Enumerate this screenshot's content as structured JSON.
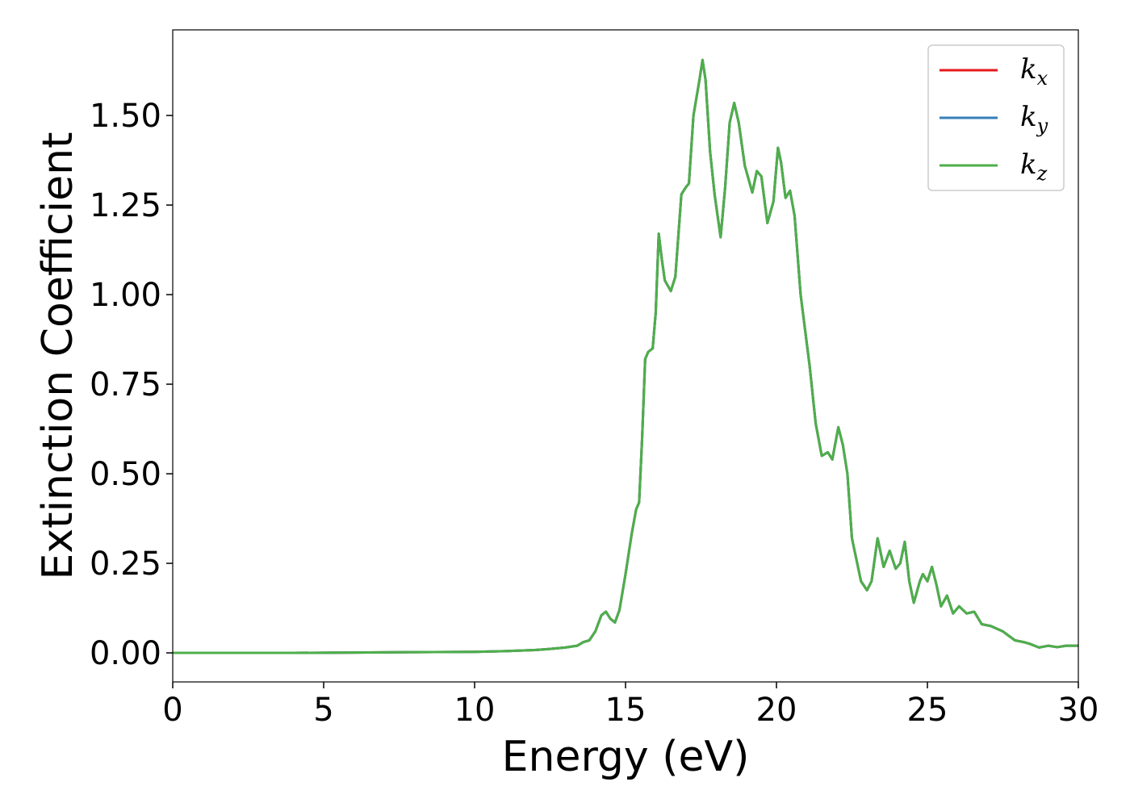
{
  "chart_data": {
    "type": "line",
    "xlabel": "Energy (eV)",
    "ylabel": "Extinction Coefficient",
    "xlim": [
      0,
      30
    ],
    "ylim": [
      -0.081,
      1.739
    ],
    "xticks": [
      0,
      5,
      10,
      15,
      20,
      25,
      30
    ],
    "yticks": [
      {
        "value": 0,
        "label": "0.00"
      },
      {
        "value": 0.25,
        "label": "0.25"
      },
      {
        "value": 0.5,
        "label": "0.50"
      },
      {
        "value": 0.75,
        "label": "0.75"
      },
      {
        "value": 1.0,
        "label": "1.00"
      },
      {
        "value": 1.25,
        "label": "1.25"
      },
      {
        "value": 1.5,
        "label": "1.50"
      }
    ],
    "legend": "upper right",
    "grid": false,
    "x": [
      0,
      2,
      4,
      6,
      8,
      10,
      11,
      12,
      12.5,
      13,
      13.4,
      13.6,
      13.8,
      14,
      14.2,
      14.35,
      14.5,
      14.65,
      14.8,
      15,
      15.2,
      15.35,
      15.45,
      15.55,
      15.65,
      15.75,
      15.9,
      16.0,
      16.1,
      16.2,
      16.3,
      16.5,
      16.65,
      16.85,
      17.0,
      17.1,
      17.25,
      17.45,
      17.55,
      17.65,
      17.8,
      17.95,
      18.15,
      18.3,
      18.45,
      18.6,
      18.75,
      18.95,
      19.2,
      19.35,
      19.5,
      19.7,
      19.9,
      20.05,
      20.15,
      20.3,
      20.45,
      20.6,
      20.8,
      21.1,
      21.3,
      21.5,
      21.7,
      21.85,
      22.05,
      22.2,
      22.35,
      22.5,
      22.8,
      23.0,
      23.15,
      23.35,
      23.55,
      23.75,
      23.95,
      24.1,
      24.25,
      24.4,
      24.55,
      24.75,
      24.85,
      25.0,
      25.15,
      25.3,
      25.45,
      25.65,
      25.85,
      26.05,
      26.3,
      26.55,
      26.8,
      27.1,
      27.5,
      27.9,
      28.2,
      28.4,
      28.7,
      29.0,
      29.3,
      29.6,
      30
    ],
    "series": [
      {
        "name": "kx",
        "color": "#e41a1c",
        "values": [
          0,
          0,
          0,
          0.001,
          0.002,
          0.003,
          0.005,
          0.008,
          0.011,
          0.015,
          0.02,
          0.03,
          0.035,
          0.06,
          0.105,
          0.115,
          0.095,
          0.085,
          0.12,
          0.22,
          0.33,
          0.4,
          0.42,
          0.6,
          0.82,
          0.84,
          0.85,
          0.95,
          1.17,
          1.1,
          1.04,
          1.01,
          1.05,
          1.28,
          1.3,
          1.31,
          1.5,
          1.6,
          1.655,
          1.6,
          1.4,
          1.28,
          1.16,
          1.3,
          1.48,
          1.535,
          1.48,
          1.36,
          1.285,
          1.345,
          1.33,
          1.2,
          1.26,
          1.41,
          1.37,
          1.27,
          1.29,
          1.22,
          1.0,
          0.8,
          0.64,
          0.55,
          0.56,
          0.54,
          0.63,
          0.58,
          0.5,
          0.32,
          0.2,
          0.175,
          0.2,
          0.32,
          0.24,
          0.285,
          0.235,
          0.25,
          0.31,
          0.2,
          0.14,
          0.2,
          0.22,
          0.2,
          0.24,
          0.19,
          0.13,
          0.16,
          0.11,
          0.13,
          0.11,
          0.115,
          0.08,
          0.075,
          0.06,
          0.035,
          0.03,
          0.025,
          0.015,
          0.02,
          0.016,
          0.02,
          0.02
        ]
      },
      {
        "name": "ky",
        "color": "#377eb8",
        "values": [
          0,
          0,
          0,
          0.001,
          0.002,
          0.003,
          0.005,
          0.008,
          0.011,
          0.015,
          0.02,
          0.03,
          0.035,
          0.06,
          0.105,
          0.115,
          0.095,
          0.085,
          0.12,
          0.22,
          0.33,
          0.4,
          0.42,
          0.6,
          0.82,
          0.84,
          0.85,
          0.95,
          1.17,
          1.1,
          1.04,
          1.01,
          1.05,
          1.28,
          1.3,
          1.31,
          1.5,
          1.6,
          1.655,
          1.6,
          1.4,
          1.28,
          1.16,
          1.3,
          1.48,
          1.535,
          1.48,
          1.36,
          1.285,
          1.345,
          1.33,
          1.2,
          1.26,
          1.41,
          1.37,
          1.27,
          1.29,
          1.22,
          1.0,
          0.8,
          0.64,
          0.55,
          0.56,
          0.54,
          0.63,
          0.58,
          0.5,
          0.32,
          0.2,
          0.175,
          0.2,
          0.32,
          0.24,
          0.285,
          0.235,
          0.25,
          0.31,
          0.2,
          0.14,
          0.2,
          0.22,
          0.2,
          0.24,
          0.19,
          0.13,
          0.16,
          0.11,
          0.13,
          0.11,
          0.115,
          0.08,
          0.075,
          0.06,
          0.035,
          0.03,
          0.025,
          0.015,
          0.02,
          0.016,
          0.02,
          0.02
        ]
      },
      {
        "name": "kz",
        "color": "#4daf4a",
        "values": [
          0,
          0,
          0,
          0.001,
          0.002,
          0.003,
          0.005,
          0.008,
          0.011,
          0.015,
          0.02,
          0.03,
          0.035,
          0.06,
          0.105,
          0.115,
          0.095,
          0.085,
          0.12,
          0.22,
          0.33,
          0.4,
          0.42,
          0.6,
          0.82,
          0.84,
          0.85,
          0.95,
          1.17,
          1.1,
          1.04,
          1.01,
          1.05,
          1.28,
          1.3,
          1.31,
          1.5,
          1.6,
          1.655,
          1.6,
          1.4,
          1.28,
          1.16,
          1.3,
          1.48,
          1.535,
          1.48,
          1.36,
          1.285,
          1.345,
          1.33,
          1.2,
          1.26,
          1.41,
          1.37,
          1.27,
          1.29,
          1.22,
          1.0,
          0.8,
          0.64,
          0.55,
          0.56,
          0.54,
          0.63,
          0.58,
          0.5,
          0.32,
          0.2,
          0.175,
          0.2,
          0.32,
          0.24,
          0.285,
          0.235,
          0.25,
          0.31,
          0.2,
          0.14,
          0.2,
          0.22,
          0.2,
          0.24,
          0.19,
          0.13,
          0.16,
          0.11,
          0.13,
          0.11,
          0.115,
          0.08,
          0.075,
          0.06,
          0.035,
          0.03,
          0.025,
          0.015,
          0.02,
          0.016,
          0.02,
          0.02
        ]
      }
    ]
  }
}
